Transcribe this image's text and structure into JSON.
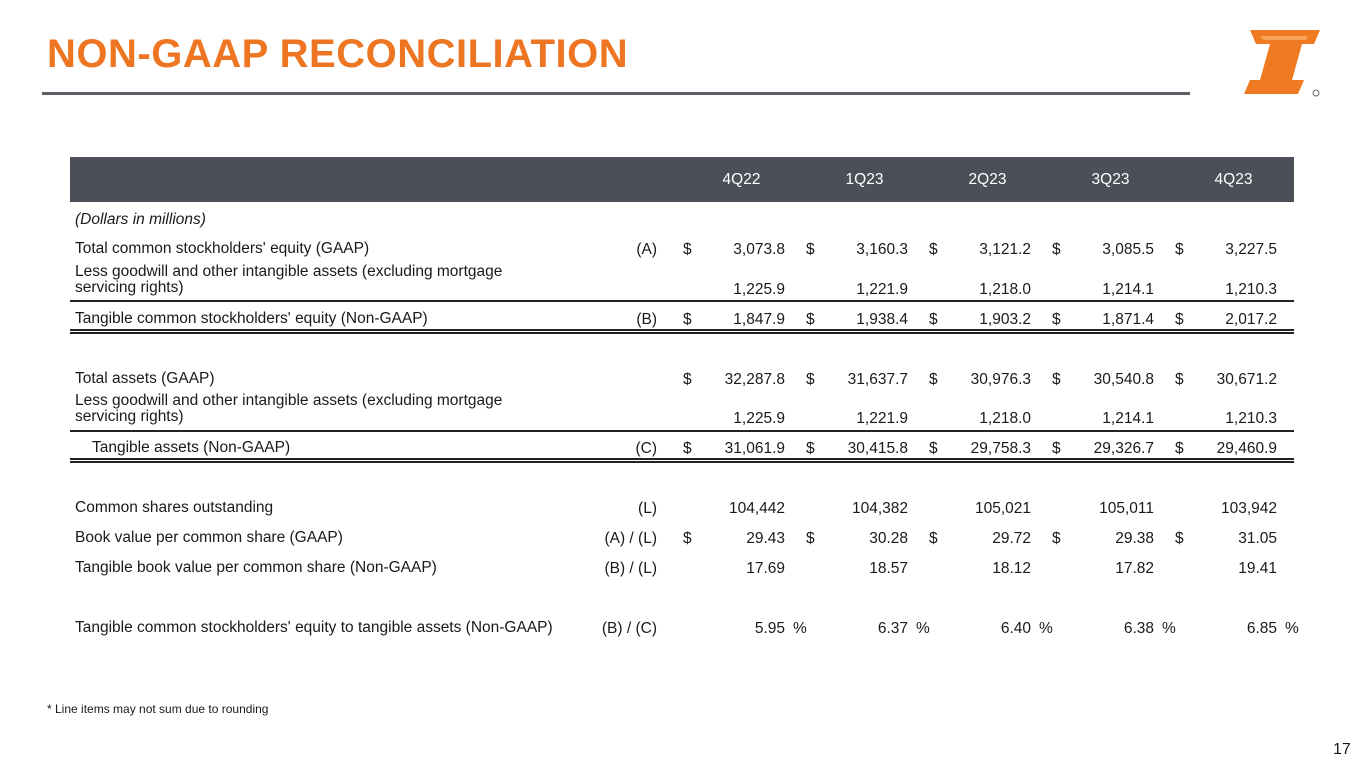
{
  "header": {
    "title": "NON-GAAP RECONCILIATION"
  },
  "table": {
    "columns": [
      "4Q22",
      "1Q23",
      "2Q23",
      "3Q23",
      "4Q23"
    ],
    "unit_note": "(Dollars in millions)",
    "rows": [
      {
        "label": "Total common stockholders' equity (GAAP)",
        "ref": "(A)",
        "symbol": "$",
        "values": [
          "3,073.8",
          "3,160.3",
          "3,121.2",
          "3,085.5",
          "3,227.5"
        ]
      },
      {
        "label": "Less goodwill and other intangible assets (excluding mortgage servicing rights)",
        "values": [
          "1,225.9",
          "1,221.9",
          "1,218.0",
          "1,214.1",
          "1,210.3"
        ]
      },
      {
        "label": "Tangible common stockholders' equity (Non-GAAP)",
        "ref": "(B)",
        "symbol": "$",
        "values": [
          "1,847.9",
          "1,938.4",
          "1,903.2",
          "1,871.4",
          "2,017.2"
        ]
      },
      {
        "label": "Total assets (GAAP)",
        "symbol": "$",
        "values": [
          "32,287.8",
          "31,637.7",
          "30,976.3",
          "30,540.8",
          "30,671.2"
        ]
      },
      {
        "label": "Less goodwill and other intangible assets (excluding mortgage servicing rights)",
        "values": [
          "1,225.9",
          "1,221.9",
          "1,218.0",
          "1,214.1",
          "1,210.3"
        ]
      },
      {
        "label": "Tangible assets (Non-GAAP)",
        "ref": "(C)",
        "symbol": "$",
        "values": [
          "31,061.9",
          "30,415.8",
          "29,758.3",
          "29,326.7",
          "29,460.9"
        ]
      },
      {
        "label": "Common shares outstanding",
        "ref": "(L)",
        "values": [
          "104,442",
          "104,382",
          "105,021",
          "105,011",
          "103,942"
        ]
      },
      {
        "label": "Book value per common share (GAAP)",
        "ref": "(A) / (L)",
        "symbol": "$",
        "values": [
          "29.43",
          "30.28",
          "29.72",
          "29.38",
          "31.05"
        ]
      },
      {
        "label": "Tangible book value per common share (Non-GAAP)",
        "ref": "(B) / (L)",
        "values": [
          "17.69",
          "18.57",
          "18.12",
          "17.82",
          "19.41"
        ]
      },
      {
        "label": "Tangible common stockholders' equity to tangible assets (Non-GAAP)",
        "ref": "(B) / (C)",
        "suffix": "%",
        "values": [
          "5.95",
          "6.37",
          "6.40",
          "6.38",
          "6.85"
        ]
      }
    ]
  },
  "footnote": "* Line items may not sum due to rounding",
  "page_number": "17"
}
